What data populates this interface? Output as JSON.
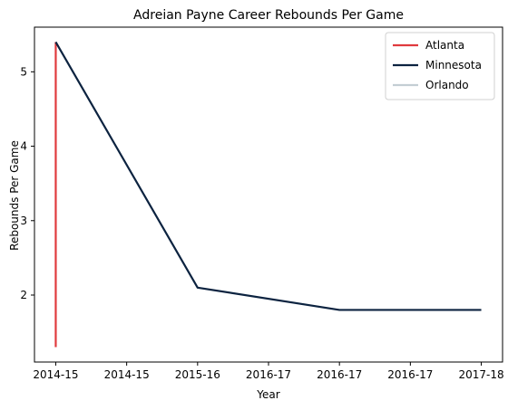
{
  "chart_data": {
    "type": "line",
    "title": "Adreian Payne Career Rebounds Per Game",
    "xlabel": "Year",
    "ylabel": "Rebounds Per Game",
    "x_ticks": [
      "2014-15",
      "2014-15",
      "2015-16",
      "2016-17",
      "2016-17",
      "2016-17",
      "2017-18"
    ],
    "x_range": [
      -0.15,
      3.15
    ],
    "y_ticks": [
      "2",
      "3",
      "4",
      "5"
    ],
    "ylim": [
      1.1,
      5.6
    ],
    "grid": false,
    "legend_position": "top-right",
    "series": [
      {
        "name": "Atlanta",
        "color": "#e03a3e",
        "points": [
          [
            0,
            1.3
          ],
          [
            0,
            5.4
          ]
        ]
      },
      {
        "name": "Minnesota",
        "color": "#0c2340",
        "points": [
          [
            0,
            5.4
          ],
          [
            1,
            2.1
          ],
          [
            2,
            1.8
          ],
          [
            3,
            1.8
          ]
        ]
      },
      {
        "name": "Orlando",
        "color": "#c4ced4",
        "points": []
      }
    ]
  }
}
